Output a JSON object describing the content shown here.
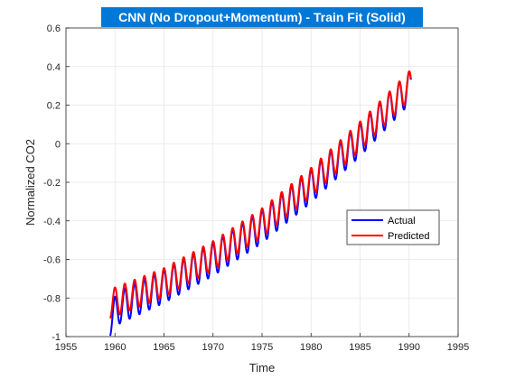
{
  "chart_data": {
    "type": "line",
    "title": "CNN (No Dropout+Momentum) - Train Fit (Solid)",
    "xlabel": "Time",
    "ylabel": "Normalized CO2",
    "xlim": [
      1955,
      1995
    ],
    "ylim": [
      -1,
      0.6
    ],
    "xticks": [
      1955,
      1960,
      1965,
      1970,
      1975,
      1980,
      1985,
      1990,
      1995
    ],
    "yticks": [
      -1,
      -0.8,
      -0.6,
      -0.4,
      -0.2,
      0,
      0.2,
      0.4,
      0.6
    ],
    "xtick_labels": [
      "1955",
      "1960",
      "1965",
      "1970",
      "1975",
      "1980",
      "1985",
      "1990",
      "1995"
    ],
    "ytick_labels": [
      "-1",
      "-0.8",
      "-0.6",
      "-0.4",
      "-0.2",
      "0",
      "0.2",
      "0.4",
      "0.6"
    ],
    "grid": true,
    "legend_position": "right-middle",
    "x_start": 1959.5,
    "x_end": 1990.2,
    "samples_per_year": 12,
    "series": [
      {
        "name": "Actual",
        "color": "#0000ff",
        "trend": [
          [
            1959.5,
            -0.87
          ],
          [
            1965,
            -0.74
          ],
          [
            1970,
            -0.6
          ],
          [
            1975,
            -0.43
          ],
          [
            1980,
            -0.22
          ],
          [
            1985,
            0.02
          ],
          [
            1990.2,
            0.3
          ]
        ],
        "seasonal_amplitude": 0.085
      },
      {
        "name": "Predicted",
        "color": "#ff0000",
        "trend": [
          [
            1959.5,
            -0.83
          ],
          [
            1965,
            -0.72
          ],
          [
            1970,
            -0.58
          ],
          [
            1975,
            -0.41
          ],
          [
            1980,
            -0.2
          ],
          [
            1985,
            0.04
          ],
          [
            1990.2,
            0.31
          ]
        ],
        "seasonal_amplitude": 0.075
      }
    ]
  },
  "colors": {
    "title_background": "#0078d7",
    "axes_background": "#ffffff",
    "axis_color": "#262626",
    "grid_color": "#e6e6e6"
  }
}
